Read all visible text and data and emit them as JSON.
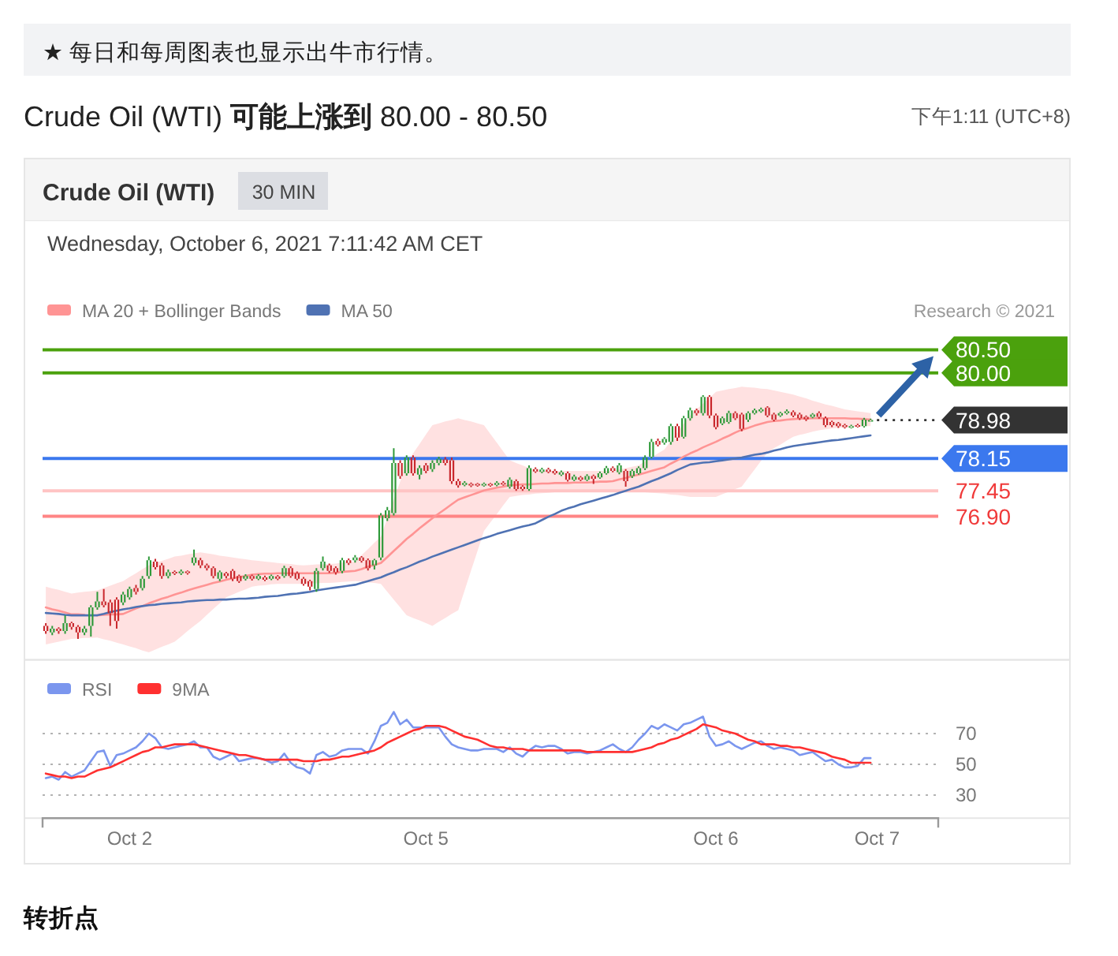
{
  "chart_data": [
    {
      "type": "candlestick",
      "title": "Crude Oil (WTI) **可能上涨到** 80.00 - 80.50",
      "annotations": [
        "★ 每日和每周图表也显示出牛市行情。",
        "下午1:11 (UTC+8)",
        "Crude Oil (WTI)",
        "30 MIN",
        "Wednesday, October 6, 2021 7:11:42 AM CET",
        "Research © 2021",
        "转折点"
      ],
      "categories": [
        null,
        null,
        null,
        null,
        null,
        null,
        null,
        null,
        null,
        null,
        null,
        null,
        null,
        "Oct 2",
        null,
        null,
        null,
        null,
        null,
        null,
        null,
        null,
        null,
        null,
        null,
        null,
        null,
        null,
        null,
        null,
        null,
        null,
        null,
        null,
        null,
        null,
        null,
        null,
        null,
        null,
        null,
        null,
        null,
        null,
        null,
        null,
        null,
        null,
        null,
        null,
        null,
        null,
        null,
        null,
        null,
        null,
        null,
        null,
        null,
        "Oct 5",
        null,
        null,
        null,
        null,
        null,
        null,
        null,
        null,
        null,
        null,
        null,
        null,
        null,
        null,
        null,
        null,
        null,
        null,
        null,
        null,
        null,
        null,
        null,
        null,
        null,
        null,
        null,
        null,
        null,
        null,
        null,
        null,
        null,
        null,
        null,
        null,
        null,
        null,
        null,
        null,
        null,
        null,
        null,
        null,
        "Oct 6",
        null,
        null,
        null,
        null,
        null,
        null,
        null,
        null,
        null,
        null,
        null,
        null,
        null,
        null,
        null,
        null,
        null,
        null,
        null,
        null,
        null,
        null,
        null,
        null,
        "Oct 7",
        null,
        null,
        null,
        null,
        null,
        null,
        null,
        null,
        null
      ],
      "ohlc": [
        [
          74.53,
          74.59,
          74.36,
          74.42
        ],
        [
          74.39,
          74.53,
          74.33,
          74.47
        ],
        [
          74.47,
          74.5,
          74.36,
          74.42
        ],
        [
          74.42,
          74.76,
          74.36,
          74.59
        ],
        [
          74.59,
          74.62,
          74.45,
          74.51
        ],
        [
          74.51,
          74.55,
          74.25,
          74.39
        ],
        [
          74.39,
          74.53,
          74.33,
          74.47
        ],
        [
          74.53,
          74.98,
          74.3,
          74.93
        ],
        [
          74.93,
          75.27,
          74.88,
          75.06
        ],
        [
          75.06,
          75.33,
          74.93,
          74.98
        ],
        [
          75.04,
          75.1,
          74.53,
          74.81
        ],
        [
          75.1,
          75.15,
          74.47,
          74.64
        ],
        [
          75.04,
          75.27,
          74.98,
          75.21
        ],
        [
          75.15,
          75.38,
          75.1,
          75.33
        ],
        [
          75.35,
          75.42,
          75.21,
          75.27
        ],
        [
          75.35,
          75.61,
          75.3,
          75.55
        ],
        [
          75.61,
          76.03,
          75.55,
          75.95
        ],
        [
          75.92,
          75.98,
          75.75,
          75.8
        ],
        [
          75.84,
          75.89,
          75.55,
          75.61
        ],
        [
          75.61,
          75.75,
          75.56,
          75.69
        ],
        [
          75.7,
          75.73,
          75.63,
          75.67
        ],
        [
          75.67,
          75.75,
          75.63,
          75.71
        ],
        [
          75.71,
          75.73,
          75.64,
          75.68
        ],
        [
          75.89,
          76.18,
          75.84,
          76.01
        ],
        [
          75.95,
          76.0,
          75.78,
          75.84
        ],
        [
          75.84,
          75.88,
          75.73,
          75.78
        ],
        [
          75.78,
          75.82,
          75.56,
          75.61
        ],
        [
          75.55,
          75.73,
          75.5,
          75.69
        ],
        [
          75.67,
          75.7,
          75.56,
          75.61
        ],
        [
          75.72,
          75.76,
          75.5,
          75.55
        ],
        [
          75.61,
          75.64,
          75.46,
          75.5
        ],
        [
          75.55,
          75.65,
          75.51,
          75.61
        ],
        [
          75.61,
          75.64,
          75.51,
          75.55
        ],
        [
          75.55,
          75.65,
          75.52,
          75.61
        ],
        [
          75.58,
          75.62,
          75.5,
          75.53
        ],
        [
          75.55,
          75.64,
          75.52,
          75.61
        ],
        [
          75.6,
          75.63,
          75.52,
          75.55
        ],
        [
          75.61,
          75.83,
          75.57,
          75.78
        ],
        [
          75.78,
          75.82,
          75.57,
          75.61
        ],
        [
          75.67,
          75.71,
          75.52,
          75.55
        ],
        [
          75.55,
          75.59,
          75.4,
          75.44
        ],
        [
          75.5,
          75.53,
          75.3,
          75.38
        ],
        [
          75.33,
          75.78,
          75.27,
          75.72
        ],
        [
          75.78,
          76.03,
          75.73,
          75.92
        ],
        [
          75.84,
          75.88,
          75.68,
          75.72
        ],
        [
          75.78,
          75.82,
          75.64,
          75.69
        ],
        [
          75.72,
          76.0,
          75.67,
          75.95
        ],
        [
          75.95,
          75.99,
          75.85,
          75.89
        ],
        [
          75.95,
          76.06,
          75.9,
          76.01
        ],
        [
          76.01,
          76.04,
          75.9,
          75.94
        ],
        [
          75.95,
          75.99,
          75.73,
          75.78
        ],
        [
          75.84,
          75.98,
          75.75,
          75.95
        ],
        [
          76.01,
          76.97,
          75.95,
          76.92
        ],
        [
          76.86,
          77.1,
          76.8,
          77.03
        ],
        [
          76.97,
          78.37,
          76.92,
          78.05
        ],
        [
          78.05,
          78.11,
          77.71,
          77.77
        ],
        [
          77.83,
          78.22,
          77.78,
          78.17
        ],
        [
          78.17,
          78.22,
          77.78,
          77.83
        ],
        [
          77.8,
          78.0,
          77.7,
          77.94
        ],
        [
          78.0,
          78.05,
          77.83,
          77.88
        ],
        [
          77.92,
          78.11,
          77.86,
          78.05
        ],
        [
          78.05,
          78.19,
          78.0,
          78.14
        ],
        [
          78.13,
          78.18,
          78.0,
          78.05
        ],
        [
          78.11,
          78.17,
          77.6,
          77.66
        ],
        [
          77.66,
          77.71,
          77.52,
          77.57
        ],
        [
          77.58,
          77.66,
          77.55,
          77.62
        ],
        [
          77.6,
          77.63,
          77.53,
          77.57
        ],
        [
          77.6,
          77.62,
          77.54,
          77.57
        ],
        [
          77.57,
          77.63,
          77.54,
          77.6
        ],
        [
          77.6,
          77.62,
          77.54,
          77.57
        ],
        [
          77.58,
          77.66,
          77.55,
          77.62
        ],
        [
          77.62,
          77.66,
          77.56,
          77.59
        ],
        [
          77.54,
          77.74,
          77.5,
          77.69
        ],
        [
          77.66,
          77.7,
          77.45,
          77.49
        ],
        [
          77.54,
          77.57,
          77.45,
          77.49
        ],
        [
          77.49,
          78.0,
          77.45,
          77.94
        ],
        [
          77.92,
          77.96,
          77.84,
          77.87
        ],
        [
          77.86,
          77.95,
          77.83,
          77.91
        ],
        [
          77.91,
          77.95,
          77.83,
          77.86
        ],
        [
          77.88,
          77.92,
          77.8,
          77.83
        ],
        [
          77.8,
          77.89,
          77.77,
          77.85
        ],
        [
          77.83,
          77.87,
          77.65,
          77.69
        ],
        [
          77.69,
          77.8,
          77.66,
          77.76
        ],
        [
          77.74,
          77.77,
          77.66,
          77.69
        ],
        [
          77.69,
          77.81,
          77.66,
          77.77
        ],
        [
          77.77,
          77.8,
          77.6,
          77.71
        ],
        [
          77.74,
          77.87,
          77.71,
          77.83
        ],
        [
          77.83,
          77.99,
          77.8,
          77.94
        ],
        [
          77.94,
          77.98,
          77.85,
          77.88
        ],
        [
          77.85,
          78.05,
          77.81,
          78.0
        ],
        [
          77.88,
          77.92,
          77.54,
          77.66
        ],
        [
          77.77,
          77.92,
          77.73,
          77.88
        ],
        [
          77.83,
          77.98,
          77.8,
          77.94
        ],
        [
          77.94,
          78.22,
          77.9,
          78.17
        ],
        [
          78.19,
          78.57,
          78.15,
          78.51
        ],
        [
          78.53,
          78.58,
          78.41,
          78.45
        ],
        [
          78.49,
          78.61,
          78.45,
          78.57
        ],
        [
          78.51,
          78.9,
          78.45,
          78.85
        ],
        [
          78.85,
          78.9,
          78.53,
          78.6
        ],
        [
          78.62,
          79.07,
          78.58,
          79.02
        ],
        [
          79.02,
          79.25,
          78.97,
          79.19
        ],
        [
          79.19,
          79.23,
          79.08,
          79.13
        ],
        [
          79.13,
          79.52,
          79.08,
          79.48
        ],
        [
          79.48,
          79.52,
          79.02,
          79.08
        ],
        [
          79.08,
          79.12,
          78.78,
          78.83
        ],
        [
          78.91,
          79.06,
          78.87,
          79.02
        ],
        [
          78.94,
          79.18,
          78.9,
          79.13
        ],
        [
          79.13,
          79.17,
          78.98,
          79.02
        ],
        [
          79.1,
          79.14,
          78.74,
          78.79
        ],
        [
          78.99,
          79.17,
          78.94,
          79.13
        ],
        [
          79.13,
          79.23,
          79.1,
          79.19
        ],
        [
          79.17,
          79.25,
          79.14,
          79.21
        ],
        [
          79.25,
          79.28,
          79.04,
          79.08
        ],
        [
          79.1,
          79.14,
          78.95,
          78.99
        ],
        [
          79.08,
          79.16,
          79.05,
          79.13
        ],
        [
          79.13,
          79.21,
          79.1,
          79.17
        ],
        [
          79.15,
          79.19,
          79.04,
          79.08
        ],
        [
          79.1,
          79.14,
          78.98,
          79.02
        ],
        [
          79.05,
          79.08,
          78.96,
          79.0
        ],
        [
          79.05,
          79.13,
          79.02,
          79.1
        ],
        [
          79.13,
          79.17,
          79.01,
          79.05
        ],
        [
          79.02,
          79.06,
          78.83,
          78.87
        ],
        [
          78.94,
          78.97,
          78.83,
          78.87
        ],
        [
          78.91,
          78.94,
          78.81,
          78.85
        ],
        [
          78.87,
          78.9,
          78.8,
          78.83
        ],
        [
          78.83,
          78.88,
          78.8,
          78.85
        ],
        [
          78.87,
          78.9,
          78.82,
          78.85
        ],
        [
          78.85,
          79.03,
          78.82,
          78.99
        ],
        [
          78.96,
          79.01,
          78.94,
          78.98
        ],
        null,
        null,
        null,
        null,
        null,
        null,
        null,
        null,
        null,
        null
      ],
      "colors": [
        "#c9282d",
        "#2f9a3a",
        "#c9282d",
        "#2f9a3a",
        "#c9282d",
        "#c9282d",
        "#2f9a3a",
        "#2f9a3a",
        "#2f9a3a",
        "#c9282d",
        "#c9282d",
        "#c9282d",
        "#2f9a3a",
        "#2f9a3a",
        "#c9282d",
        "#2f9a3a",
        "#2f9a3a",
        "#c9282d",
        "#c9282d",
        "#2f9a3a",
        "#c9282d",
        "#2f9a3a",
        "#c9282d",
        "#2f9a3a",
        "#c9282d",
        "#c9282d",
        "#c9282d",
        "#2f9a3a",
        "#c9282d",
        "#c9282d",
        "#c9282d",
        "#2f9a3a",
        "#c9282d",
        "#2f9a3a",
        "#c9282d",
        "#2f9a3a",
        "#c9282d",
        "#2f9a3a",
        "#c9282d",
        "#c9282d",
        "#c9282d",
        "#c9282d",
        "#2f9a3a",
        "#2f9a3a",
        "#c9282d",
        "#c9282d",
        "#2f9a3a",
        "#c9282d",
        "#2f9a3a",
        "#c9282d",
        "#c9282d",
        "#2f9a3a",
        "#2f9a3a",
        "#2f9a3a",
        "#2f9a3a",
        "#c9282d",
        "#2f9a3a",
        "#c9282d",
        "#2f9a3a",
        "#c9282d",
        "#2f9a3a",
        "#2f9a3a",
        "#c9282d",
        "#c9282d",
        "#c9282d",
        "#2f9a3a",
        "#c9282d",
        "#c9282d",
        "#2f9a3a",
        "#c9282d",
        "#2f9a3a",
        "#c9282d",
        "#2f9a3a",
        "#c9282d",
        "#c9282d",
        "#2f9a3a",
        "#c9282d",
        "#2f9a3a",
        "#c9282d",
        "#c9282d",
        "#2f9a3a",
        "#c9282d",
        "#2f9a3a",
        "#c9282d",
        "#2f9a3a",
        "#c9282d",
        "#2f9a3a",
        "#2f9a3a",
        "#c9282d",
        "#2f9a3a",
        "#c9282d",
        "#2f9a3a",
        "#2f9a3a",
        "#2f9a3a",
        "#2f9a3a",
        "#c9282d",
        "#2f9a3a",
        "#2f9a3a",
        "#c9282d",
        "#2f9a3a",
        "#2f9a3a",
        "#c9282d",
        "#2f9a3a",
        "#c9282d",
        "#c9282d",
        "#2f9a3a",
        "#2f9a3a",
        "#c9282d",
        "#c9282d",
        "#2f9a3a",
        "#2f9a3a",
        "#2f9a3a",
        "#c9282d",
        "#c9282d",
        "#2f9a3a",
        "#2f9a3a",
        "#c9282d",
        "#c9282d",
        "#c9282d",
        "#2f9a3a",
        "#c9282d",
        "#c9282d",
        "#c9282d",
        "#c9282d",
        "#c9282d",
        "#2f9a3a",
        "#c9282d",
        "#2f9a3a",
        "#2f9a3a",
        null,
        null,
        null,
        null,
        null,
        null,
        null,
        null,
        null,
        null
      ],
      "series": [
        {
          "name": "MA 20 + Bollinger Bands",
          "type": "line",
          "color": "#ff9494",
          "values": [
            74.93,
            74.89,
            74.86,
            74.82,
            74.78,
            74.78,
            74.77,
            null,
            74.76,
            74.77,
            74.78,
            74.78,
            74.79,
            74.85,
            74.91,
            74.96,
            75.02,
            75.07,
            75.12,
            75.16,
            75.21,
            75.25,
            75.3,
            75.34,
            75.38,
            75.42,
            75.46,
            75.49,
            75.53,
            75.56,
            75.59,
            75.61,
            75.64,
            75.65,
            75.66,
            75.66,
            75.67,
            75.67,
            75.67,
            75.67,
            75.67,
            75.67,
            75.67,
            75.67,
            75.67,
            75.68,
            75.7,
            75.71,
            75.72,
            75.76,
            75.81,
            75.85,
            75.89,
            76.02,
            76.15,
            76.28,
            76.41,
            76.52,
            76.64,
            76.75,
            76.86,
            76.96,
            77.06,
            77.16,
            77.26,
            77.31,
            77.36,
            77.41,
            77.46,
            77.49,
            77.52,
            77.54,
            77.57,
            77.58,
            77.59,
            77.59,
            77.6,
            77.61,
            77.61,
            77.62,
            77.62,
            77.62,
            77.63,
            77.63,
            77.63,
            77.64,
            77.65,
            77.65,
            77.66,
            77.7,
            77.73,
            77.77,
            77.8,
            77.84,
            77.88,
            77.92,
            77.96,
            78.04,
            78.11,
            78.19,
            78.26,
            78.32,
            78.39,
            78.45,
            78.51,
            78.58,
            78.64,
            78.71,
            78.77,
            78.81,
            78.86,
            78.9,
            78.94,
            78.96,
            78.97,
            78.99,
            79.0,
            79.01,
            79.01,
            79.02,
            79.02,
            79.02,
            79.02,
            79.02,
            79.02,
            79.01,
            79.01,
            79.0,
            78.99,
            null,
            null,
            null,
            null,
            null,
            null,
            null,
            null,
            null,
            null
          ],
          "lower": [
            74.13,
            74.16,
            74.19,
            74.22,
            74.25,
            74.26,
            74.27,
            74.27,
            74.28,
            74.24,
            74.21,
            74.17,
            74.13,
            74.09,
            74.05,
            74.0,
            73.96,
            74.02,
            74.08,
            74.13,
            74.19,
            74.3,
            74.42,
            74.53,
            74.64,
            74.77,
            74.9,
            75.02,
            75.15,
            75.21,
            75.27,
            75.32,
            75.38,
            75.4,
            75.41,
            75.43,
            75.44,
            75.44,
            75.44,
            75.44,
            75.44,
            75.45,
            75.45,
            75.46,
            75.46,
            75.47,
            75.48,
            75.49,
            75.5,
            75.49,
            75.47,
            75.46,
            75.44,
            75.27,
            75.1,
            74.93,
            74.76,
            74.7,
            74.65,
            74.59,
            74.53,
            74.62,
            74.7,
            74.79,
            74.87,
            75.3,
            75.73,
            76.15,
            76.58,
            76.77,
            76.95,
            77.14,
            77.32,
            77.34,
            77.36,
            77.37,
            77.39,
            77.4,
            77.41,
            77.42,
            77.43,
            77.44,
            77.44,
            77.45,
            77.45,
            77.45,
            77.46,
            77.46,
            77.46,
            77.45,
            77.45,
            77.44,
            77.43,
            77.42,
            77.41,
            77.4,
            77.39,
            77.37,
            77.36,
            77.34,
            77.32,
            77.32,
            77.32,
            77.32,
            77.32,
            77.38,
            77.43,
            77.49,
            77.54,
            77.73,
            77.91,
            78.1,
            78.28,
            78.37,
            78.45,
            78.54,
            78.62,
            78.66,
            78.69,
            78.73,
            78.76,
            78.78,
            78.8,
            78.81,
            78.83,
            78.84,
            78.84,
            78.85,
            78.85,
            null,
            null,
            null,
            null,
            null,
            null,
            null,
            null,
            null,
            null
          ],
          "upper": [
            75.38,
            75.34,
            75.31,
            75.27,
            75.23,
            75.25,
            75.27,
            75.28,
            75.3,
            75.35,
            75.4,
            75.45,
            75.5,
            75.59,
            75.67,
            75.76,
            75.84,
            75.89,
            75.94,
            75.98,
            76.03,
            76.05,
            76.08,
            76.1,
            76.12,
            76.1,
            76.08,
            76.05,
            76.03,
            76.01,
            75.99,
            75.97,
            75.95,
            75.94,
            75.92,
            75.91,
            75.89,
            75.88,
            75.87,
            75.85,
            75.84,
            75.85,
            75.86,
            75.86,
            75.87,
            75.88,
            75.9,
            75.91,
            75.92,
            76.06,
            76.19,
            76.33,
            76.46,
            76.86,
            77.26,
            77.65,
            78.05,
            78.26,
            78.46,
            78.67,
            78.87,
            78.91,
            78.95,
            78.98,
            79.02,
            78.98,
            78.95,
            78.91,
            78.87,
            78.68,
            78.49,
            78.3,
            78.11,
            78.05,
            78.0,
            77.94,
            77.88,
            77.88,
            77.88,
            77.88,
            77.88,
            77.88,
            77.88,
            77.88,
            77.88,
            77.88,
            77.88,
            77.88,
            77.88,
            77.91,
            77.94,
            77.97,
            78.0,
            78.09,
            78.17,
            78.26,
            78.34,
            78.53,
            78.71,
            78.9,
            79.08,
            79.21,
            79.34,
            79.46,
            79.59,
            79.62,
            79.65,
            79.67,
            79.7,
            79.69,
            79.68,
            79.66,
            79.65,
            79.62,
            79.59,
            79.56,
            79.53,
            79.49,
            79.45,
            79.4,
            79.36,
            79.32,
            79.29,
            79.25,
            79.21,
            79.19,
            79.17,
            79.15,
            79.13,
            null,
            null,
            null,
            null,
            null,
            null,
            null,
            null,
            null,
            null
          ]
        },
        {
          "name": "MA 50",
          "type": "line",
          "color": "#4f72b3",
          "values": [
            74.81,
            74.8,
            74.79,
            74.77,
            74.76,
            74.76,
            74.76,
            74.76,
            74.76,
            74.79,
            74.83,
            74.86,
            74.89,
            74.91,
            74.94,
            74.96,
            74.98,
            74.99,
            75.01,
            75.02,
            75.03,
            75.04,
            75.06,
            75.07,
            75.08,
            75.09,
            75.09,
            75.1,
            75.1,
            75.11,
            75.12,
            75.12,
            75.13,
            75.14,
            75.16,
            75.17,
            75.18,
            75.2,
            75.22,
            75.23,
            75.25,
            75.27,
            75.3,
            75.32,
            75.34,
            75.36,
            75.38,
            75.4,
            75.42,
            75.46,
            75.5,
            75.54,
            75.58,
            75.64,
            75.69,
            75.75,
            75.8,
            75.86,
            75.92,
            75.97,
            76.03,
            76.08,
            76.13,
            76.18,
            76.23,
            76.28,
            76.33,
            76.38,
            76.43,
            76.47,
            76.52,
            76.56,
            76.6,
            76.64,
            76.68,
            76.71,
            76.75,
            76.82,
            76.89,
            76.95,
            77.02,
            77.07,
            77.11,
            77.16,
            77.2,
            77.24,
            77.28,
            77.32,
            77.36,
            77.41,
            77.45,
            77.5,
            77.54,
            77.6,
            77.66,
            77.71,
            77.77,
            77.83,
            77.9,
            77.96,
            78.02,
            78.04,
            78.06,
            78.07,
            78.09,
            78.11,
            78.13,
            78.15,
            78.17,
            78.2,
            78.23,
            78.25,
            78.28,
            78.32,
            78.35,
            78.39,
            78.42,
            78.44,
            78.46,
            78.48,
            78.5,
            78.52,
            78.54,
            78.55,
            78.57,
            78.59,
            78.61,
            78.63,
            78.65,
            null,
            null,
            null,
            null,
            null,
            null,
            null,
            null,
            null,
            null
          ]
        }
      ],
      "ref_lines": [
        {
          "axis": "y",
          "value": 80.5,
          "label": "80.50",
          "color": "#4ba10d"
        },
        {
          "axis": "y",
          "value": 80.0,
          "label": "80.00",
          "color": "#4ba10d"
        },
        {
          "axis": "y",
          "value": 78.98,
          "label": "78.98",
          "color": "#333333",
          "line_style": "dotted"
        },
        {
          "axis": "y",
          "value": 78.15,
          "label": "78.15",
          "color": "#3b78ee"
        },
        {
          "axis": "y",
          "value": 77.45,
          "label": "77.45",
          "color": "#ffc4c4"
        },
        {
          "axis": "y",
          "value": 76.9,
          "label": "76.90",
          "color": "#ff8585"
        }
      ],
      "ylim": [
        73.8,
        83.3
      ],
      "tick_labels": "x",
      "legend": "top left"
    },
    {
      "type": "line",
      "categories": [
        null,
        null,
        null,
        null,
        null,
        null,
        null,
        null,
        null,
        null,
        null,
        null,
        null,
        null,
        null,
        null,
        null,
        null,
        null,
        null,
        null,
        null,
        null,
        null,
        null,
        null,
        null,
        null,
        null,
        null,
        null,
        null,
        null,
        null,
        null,
        null,
        null,
        null,
        null,
        null,
        null,
        null,
        null,
        null,
        null,
        null,
        null,
        null,
        null,
        null,
        null,
        null,
        null,
        null,
        null,
        null,
        null,
        null,
        null,
        null,
        null,
        null,
        null,
        null,
        null,
        null,
        null,
        null,
        null,
        null,
        null,
        null,
        null,
        null,
        null,
        null,
        null,
        null,
        null,
        null,
        null,
        null,
        null,
        null,
        null,
        null,
        null,
        null,
        null,
        null,
        null,
        null,
        null,
        null,
        null,
        null,
        null,
        null,
        null,
        null,
        null,
        null,
        null,
        null,
        null,
        null,
        null,
        null,
        null,
        null,
        null,
        null,
        null,
        null,
        null,
        null,
        null,
        null,
        null,
        null,
        null,
        null,
        null,
        null,
        null,
        null,
        null,
        null,
        null,
        null,
        null,
        null,
        null,
        null,
        null,
        null,
        null,
        null,
        null
      ],
      "ylim": [
        15,
        118
      ],
      "yticks": [
        30,
        50,
        70
      ],
      "grid": "y",
      "legend": "top left",
      "tick_labels": "y",
      "series": [
        {
          "name": "RSI",
          "color": "#7b96ee",
          "values": [
            41,
            42,
            40,
            45,
            42,
            44,
            46,
            52,
            58,
            59,
            49,
            56,
            57,
            59,
            61,
            65,
            70,
            67,
            61,
            60,
            61,
            62,
            63,
            65,
            61,
            61,
            55,
            53,
            55,
            57,
            52,
            53,
            54,
            54,
            53,
            51,
            52,
            57,
            51,
            48,
            47,
            44,
            56,
            58,
            55,
            56,
            59,
            60,
            60,
            60,
            57,
            65,
            75,
            77,
            84,
            76,
            79,
            74,
            74,
            74,
            74,
            74,
            68,
            63,
            61,
            60,
            59,
            59,
            60,
            60,
            60,
            58,
            61,
            57,
            55,
            59,
            62,
            61,
            62,
            62,
            60,
            57,
            58,
            58,
            57,
            58,
            59,
            61,
            63,
            60,
            58,
            61,
            66,
            70,
            75,
            73,
            76,
            74,
            72,
            76,
            77,
            79,
            81,
            68,
            62,
            63,
            65,
            62,
            60,
            62,
            64,
            65,
            62,
            60,
            61,
            60,
            59,
            56,
            57,
            58,
            55,
            52,
            53,
            50,
            48,
            48,
            49,
            54,
            54,
            null,
            null,
            null,
            null,
            null,
            null,
            null,
            null,
            null,
            null
          ]
        },
        {
          "name": "9MA",
          "color": "#ff3030",
          "values": [
            44,
            43,
            42,
            42,
            41,
            42,
            42,
            44,
            46,
            47,
            48,
            50,
            52,
            54,
            56,
            58,
            59,
            61,
            61,
            62,
            63,
            63,
            63,
            63,
            62,
            61,
            60,
            59,
            58,
            57,
            56,
            56,
            55,
            54,
            53,
            53,
            53,
            53,
            53,
            53,
            52,
            52,
            52,
            53,
            53,
            54,
            55,
            55,
            56,
            57,
            58,
            59,
            61,
            64,
            66,
            68,
            70,
            72,
            73,
            75,
            75,
            75,
            74,
            72,
            70,
            68,
            67,
            66,
            64,
            62,
            61,
            61,
            60,
            60,
            60,
            59,
            59,
            59,
            59,
            59,
            59,
            59,
            59,
            59,
            58,
            58,
            58,
            58,
            58,
            58,
            58,
            58,
            59,
            60,
            61,
            63,
            64,
            66,
            67,
            69,
            71,
            73,
            76,
            75,
            74,
            72,
            71,
            70,
            68,
            66,
            65,
            63,
            63,
            63,
            62,
            62,
            61,
            61,
            60,
            59,
            58,
            57,
            55,
            54,
            53,
            51,
            51,
            51,
            51,
            null,
            null,
            null,
            null,
            null,
            null,
            null,
            null,
            null,
            null
          ]
        }
      ]
    }
  ]
}
